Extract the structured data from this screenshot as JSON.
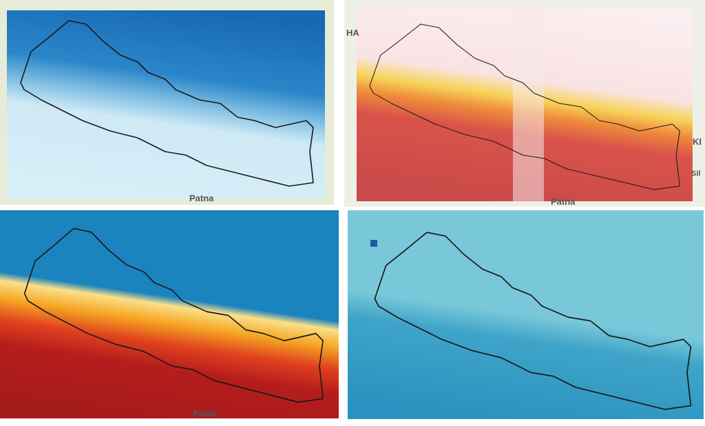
{
  "panels": [
    {
      "labels": [
        "Patna"
      ]
    },
    {
      "labels": [
        "HA",
        "KI",
        "Sil",
        "Patna"
      ]
    },
    {
      "labels": [
        "Patna"
      ]
    },
    {
      "labels": []
    }
  ]
}
